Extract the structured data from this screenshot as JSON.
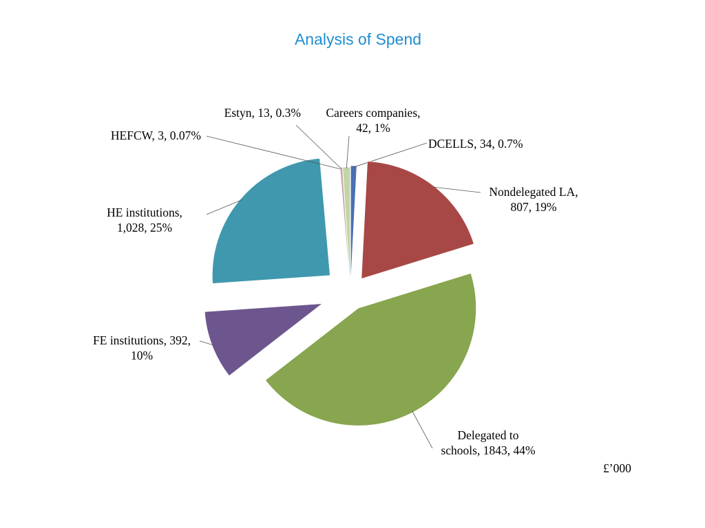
{
  "chart_data": {
    "type": "pie",
    "title": "Analysis of Spend",
    "units": "£’000",
    "slices": [
      {
        "name": "DCELLS",
        "value": 34,
        "percent": "0.7%",
        "label_lines": [
          "DCELLS, 34, 0.7%"
        ],
        "color": "#4a6fb4"
      },
      {
        "name": "Nondelegated LA",
        "value": 807,
        "percent": "19%",
        "label_lines": [
          "Nondelegated LA,",
          "807, 19%"
        ],
        "color": "#a84846"
      },
      {
        "name": "Delegated to schools",
        "value": 1843,
        "percent": "44%",
        "label_lines": [
          "Delegated to",
          "schools, 1843, 44%"
        ],
        "color": "#88a54f"
      },
      {
        "name": "FE institutions",
        "value": 392,
        "percent": "10%",
        "label_lines": [
          "FE institutions, 392,",
          "10%"
        ],
        "color": "#6d568e"
      },
      {
        "name": "HE institutions",
        "value": 1028,
        "percent": "25%",
        "label_lines": [
          "HE institutions,",
          "1,028, 25%"
        ],
        "color": "#3f98ae"
      },
      {
        "name": "HEFCW",
        "value": 3,
        "percent": "0.07%",
        "label_lines": [
          "HEFCW, 3, 0.07%"
        ],
        "color": "#9fb8d6"
      },
      {
        "name": "Estyn",
        "value": 13,
        "percent": "0.3%",
        "label_lines": [
          "Estyn, 13, 0.3%"
        ],
        "color": "#c9a8a6"
      },
      {
        "name": "Careers companies",
        "value": 42,
        "percent": "1%",
        "label_lines": [
          "Careers companies,",
          "42, 1%"
        ],
        "color": "#c2d5a6"
      }
    ]
  }
}
